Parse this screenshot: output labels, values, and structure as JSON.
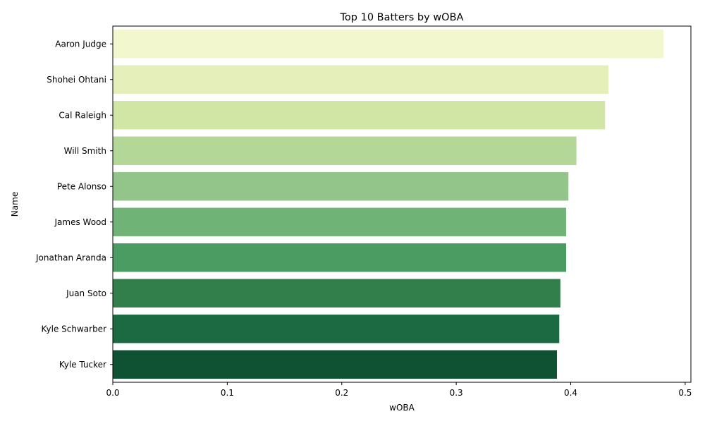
{
  "chart_data": {
    "type": "bar",
    "orientation": "horizontal",
    "title": "Top 10 Batters by wOBA",
    "xlabel": "wOBA",
    "ylabel": "Name",
    "categories": [
      "Aaron Judge",
      "Shohei Ohtani",
      "Cal Raleigh",
      "Will Smith",
      "Pete Alonso",
      "James Wood",
      "Jonathan Aranda",
      "Juan Soto",
      "Kyle Schwarber",
      "Kyle Tucker"
    ],
    "values": [
      0.481,
      0.433,
      0.43,
      0.405,
      0.398,
      0.396,
      0.396,
      0.391,
      0.39,
      0.388
    ],
    "colors": [
      "#f3f7cd",
      "#e4efba",
      "#d1e5a5",
      "#b3d796",
      "#93c58a",
      "#70b377",
      "#4b9c62",
      "#327f4c",
      "#1c6a42",
      "#0e5233"
    ],
    "xlim": [
      0,
      0.505
    ],
    "xticks": [
      0.0,
      0.1,
      0.2,
      0.3,
      0.4,
      0.5
    ],
    "xtick_labels": [
      "0.0",
      "0.1",
      "0.2",
      "0.3",
      "0.4",
      "0.5"
    ],
    "grid": false,
    "legend": "none"
  }
}
